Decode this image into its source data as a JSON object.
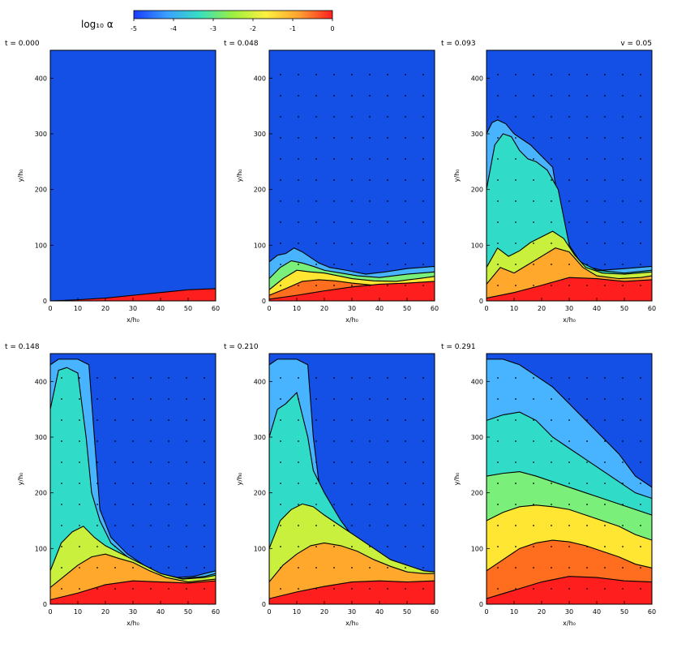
{
  "colorbar": {
    "label": "log₁₀ α",
    "ticks": [
      "-5",
      "-4",
      "-3",
      "-2",
      "-1",
      "0"
    ],
    "stops": [
      "#1a3cff",
      "#3aa0ff",
      "#38e0c0",
      "#9cf040",
      "#fff040",
      "#ffa030",
      "#ff2020"
    ]
  },
  "annotation": "v = 0.05",
  "colors": {
    "background": "#1450e6",
    "levels": [
      "#1450e6",
      "#48b4ff",
      "#30dcc8",
      "#7af07a",
      "#c8f03c",
      "#ffe632",
      "#ffa82c",
      "#ff6e1e",
      "#ff1e1e"
    ]
  },
  "chart_data": [
    {
      "type": "contour",
      "title": "t = 0.000",
      "xlabel": "x/h₀",
      "ylabel": "y/h₀",
      "xticks": [
        "0",
        "10",
        "20",
        "30",
        "40",
        "50",
        "60"
      ],
      "yticks": [
        "0",
        "100",
        "200",
        "300",
        "400"
      ],
      "xlim": [
        0,
        60
      ],
      "ylim": [
        0,
        450
      ],
      "regions": [
        {
          "level": 8,
          "x": [
            0,
            10,
            20,
            30,
            40,
            50,
            60
          ],
          "y": [
            0,
            2,
            5,
            10,
            15,
            20,
            22
          ]
        }
      ]
    },
    {
      "type": "contour",
      "title": "t = 0.048",
      "xlabel": "x/h₀",
      "ylabel": "y/h₀",
      "xticks": [
        "0",
        "10",
        "20",
        "30",
        "40",
        "50",
        "60"
      ],
      "yticks": [
        "0",
        "100",
        "200",
        "300",
        "400"
      ],
      "xlim": [
        0,
        60
      ],
      "ylim": [
        0,
        450
      ],
      "regions": [
        {
          "level": 1,
          "x": [
            0,
            3,
            6,
            9,
            12,
            15,
            18,
            22,
            28,
            35,
            42,
            50,
            60
          ],
          "y": [
            70,
            82,
            85,
            95,
            88,
            78,
            68,
            60,
            55,
            48,
            52,
            58,
            62
          ]
        },
        {
          "level": 3,
          "x": [
            0,
            4,
            8,
            12,
            16,
            20,
            26,
            32,
            40,
            50,
            60
          ],
          "y": [
            40,
            60,
            72,
            68,
            62,
            55,
            50,
            45,
            42,
            48,
            52
          ]
        },
        {
          "level": 5,
          "x": [
            0,
            5,
            10,
            15,
            20,
            25,
            30,
            38,
            46,
            54,
            60
          ],
          "y": [
            20,
            40,
            55,
            52,
            50,
            45,
            40,
            36,
            35,
            40,
            44
          ]
        },
        {
          "level": 7,
          "x": [
            0,
            6,
            12,
            18,
            24,
            30,
            38,
            46,
            54,
            60
          ],
          "y": [
            10,
            22,
            35,
            38,
            36,
            32,
            28,
            25,
            28,
            32
          ]
        },
        {
          "level": 8,
          "x": [
            0,
            10,
            20,
            30,
            40,
            50,
            60
          ],
          "y": [
            3,
            10,
            18,
            25,
            30,
            32,
            35
          ]
        }
      ]
    },
    {
      "type": "contour",
      "title": "t = 0.093",
      "xlabel": "x/h₀",
      "ylabel": "y/h₀",
      "xticks": [
        "0",
        "10",
        "20",
        "30",
        "40",
        "50",
        "60"
      ],
      "yticks": [
        "0",
        "100",
        "200",
        "300",
        "400"
      ],
      "xlim": [
        0,
        60
      ],
      "ylim": [
        0,
        450
      ],
      "regions": [
        {
          "level": 1,
          "x": [
            0,
            2,
            4,
            7,
            10,
            13,
            16,
            20,
            24,
            28,
            32,
            36,
            42,
            50,
            60
          ],
          "y": [
            300,
            320,
            325,
            318,
            300,
            290,
            280,
            260,
            240,
            120,
            80,
            62,
            55,
            58,
            62
          ]
        },
        {
          "level": 2,
          "x": [
            0,
            3,
            6,
            9,
            12,
            15,
            18,
            22,
            26,
            30,
            34,
            40,
            50,
            60
          ],
          "y": [
            200,
            280,
            300,
            295,
            270,
            255,
            250,
            235,
            200,
            100,
            70,
            55,
            50,
            55
          ]
        },
        {
          "level": 4,
          "x": [
            0,
            4,
            8,
            12,
            16,
            20,
            24,
            28,
            32,
            36,
            42,
            50,
            60
          ],
          "y": [
            60,
            95,
            80,
            90,
            105,
            115,
            125,
            112,
            82,
            60,
            50,
            48,
            52
          ]
        },
        {
          "level": 6,
          "x": [
            0,
            5,
            10,
            15,
            20,
            25,
            30,
            35,
            40,
            48,
            56,
            60
          ],
          "y": [
            30,
            60,
            50,
            65,
            80,
            95,
            88,
            60,
            45,
            40,
            42,
            45
          ]
        },
        {
          "level": 8,
          "x": [
            0,
            10,
            20,
            30,
            40,
            50,
            60
          ],
          "y": [
            5,
            15,
            28,
            42,
            40,
            35,
            38
          ]
        }
      ]
    },
    {
      "type": "contour",
      "title": "t = 0.148",
      "xlabel": "x/h₀",
      "ylabel": "y/h₀",
      "xticks": [
        "0",
        "10",
        "20",
        "30",
        "40",
        "50",
        "60"
      ],
      "yticks": [
        "0",
        "100",
        "200",
        "300",
        "400"
      ],
      "xlim": [
        0,
        60
      ],
      "ylim": [
        0,
        450
      ],
      "regions": [
        {
          "level": 1,
          "x": [
            0,
            3,
            6,
            10,
            14,
            16,
            18,
            22,
            28,
            34,
            40,
            46,
            52,
            60
          ],
          "y": [
            430,
            440,
            440,
            440,
            430,
            300,
            170,
            120,
            90,
            70,
            55,
            48,
            50,
            60
          ]
        },
        {
          "level": 2,
          "x": [
            0,
            3,
            6,
            10,
            13,
            15,
            18,
            22,
            28,
            34,
            40,
            48,
            56,
            60
          ],
          "y": [
            350,
            420,
            425,
            415,
            300,
            200,
            150,
            110,
            85,
            65,
            52,
            46,
            50,
            55
          ]
        },
        {
          "level": 4,
          "x": [
            0,
            4,
            8,
            12,
            16,
            20,
            24,
            28,
            34,
            40,
            48,
            56,
            60
          ],
          "y": [
            60,
            110,
            130,
            140,
            120,
            105,
            95,
            85,
            70,
            55,
            45,
            48,
            52
          ]
        },
        {
          "level": 6,
          "x": [
            0,
            5,
            10,
            15,
            20,
            25,
            30,
            36,
            42,
            50,
            60
          ],
          "y": [
            30,
            50,
            70,
            85,
            90,
            82,
            75,
            60,
            48,
            40,
            45
          ]
        },
        {
          "level": 8,
          "x": [
            0,
            10,
            20,
            30,
            40,
            50,
            60
          ],
          "y": [
            8,
            20,
            35,
            42,
            40,
            38,
            42
          ]
        }
      ]
    },
    {
      "type": "contour",
      "title": "t = 0.210",
      "xlabel": "x/h₀",
      "ylabel": "y/h₀",
      "xticks": [
        "0",
        "10",
        "20",
        "30",
        "40",
        "50",
        "60"
      ],
      "yticks": [
        "0",
        "100",
        "200",
        "300",
        "400"
      ],
      "xlim": [
        0,
        60
      ],
      "ylim": [
        0,
        450
      ],
      "regions": [
        {
          "level": 1,
          "x": [
            0,
            3,
            6,
            10,
            14,
            16,
            18,
            22,
            28,
            34,
            40,
            46,
            52,
            60
          ],
          "y": [
            430,
            440,
            440,
            440,
            430,
            300,
            220,
            180,
            130,
            90,
            70,
            60,
            55,
            55
          ]
        },
        {
          "level": 2,
          "x": [
            0,
            3,
            6,
            10,
            14,
            16,
            20,
            26,
            32,
            38,
            44,
            50,
            56,
            60
          ],
          "y": [
            300,
            350,
            360,
            380,
            300,
            240,
            200,
            150,
            110,
            85,
            70,
            60,
            55,
            55
          ]
        },
        {
          "level": 4,
          "x": [
            0,
            4,
            8,
            12,
            16,
            20,
            26,
            32,
            38,
            44,
            50,
            56,
            60
          ],
          "y": [
            100,
            150,
            170,
            180,
            175,
            160,
            140,
            120,
            100,
            80,
            70,
            60,
            58
          ]
        },
        {
          "level": 6,
          "x": [
            0,
            5,
            10,
            15,
            20,
            26,
            32,
            38,
            44,
            50,
            56,
            60
          ],
          "y": [
            40,
            70,
            90,
            105,
            110,
            105,
            95,
            80,
            68,
            58,
            55,
            55
          ]
        },
        {
          "level": 8,
          "x": [
            0,
            10,
            20,
            30,
            40,
            50,
            60
          ],
          "y": [
            10,
            22,
            32,
            40,
            42,
            40,
            42
          ]
        }
      ]
    },
    {
      "type": "contour",
      "title": "t = 0.291",
      "xlabel": "x/h₀",
      "ylabel": "y/h₀",
      "xticks": [
        "0",
        "10",
        "20",
        "30",
        "40",
        "50",
        "60"
      ],
      "yticks": [
        "0",
        "100",
        "200",
        "300",
        "400"
      ],
      "xlim": [
        0,
        60
      ],
      "ylim": [
        0,
        450
      ],
      "regions": [
        {
          "level": 1,
          "x": [
            0,
            6,
            12,
            18,
            24,
            30,
            36,
            42,
            48,
            54,
            60
          ],
          "y": [
            440,
            440,
            430,
            410,
            390,
            360,
            330,
            300,
            270,
            230,
            210
          ]
        },
        {
          "level": 2,
          "x": [
            0,
            6,
            12,
            18,
            24,
            30,
            36,
            42,
            48,
            54,
            60
          ],
          "y": [
            330,
            340,
            345,
            330,
            300,
            280,
            260,
            240,
            220,
            200,
            190
          ]
        },
        {
          "level": 3,
          "x": [
            0,
            6,
            12,
            18,
            24,
            30,
            36,
            42,
            48,
            54,
            60
          ],
          "y": [
            230,
            235,
            238,
            230,
            220,
            210,
            200,
            190,
            180,
            170,
            160
          ]
        },
        {
          "level": 5,
          "x": [
            0,
            6,
            12,
            18,
            24,
            30,
            36,
            42,
            48,
            54,
            60
          ],
          "y": [
            150,
            165,
            175,
            178,
            175,
            170,
            160,
            150,
            140,
            125,
            115
          ]
        },
        {
          "level": 7,
          "x": [
            0,
            6,
            12,
            18,
            24,
            30,
            36,
            42,
            48,
            54,
            60
          ],
          "y": [
            60,
            80,
            100,
            110,
            115,
            112,
            105,
            95,
            85,
            72,
            65
          ]
        },
        {
          "level": 8,
          "x": [
            0,
            10,
            20,
            30,
            40,
            50,
            60
          ],
          "y": [
            10,
            25,
            40,
            50,
            48,
            42,
            40
          ]
        }
      ]
    }
  ]
}
